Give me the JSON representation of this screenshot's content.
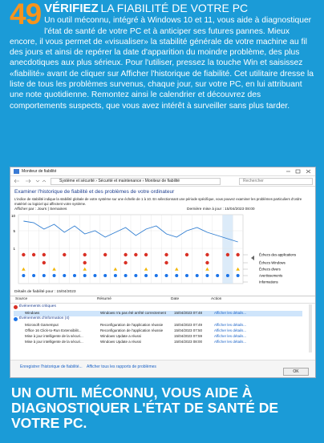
{
  "article": {
    "number": "49",
    "headline_bold": "VÉRIFIEZ",
    "headline_rest": "LA FIABILITÉ DE VOTRE PC",
    "body": "Un outil méconnu, intégré à Windows 10 et 11, vous aide à diagnostiquer l'état de santé de votre PC et à anticiper ses futures pannes. Mieux encore, il vous permet de «visualiser» la stabilité générale de votre machine au fil des jours et ainsi de repérer la date d'apparition du moindre problème, des plus anecdotiques aux plus sérieux. Pour l'utiliser, pressez la touche Win et saisissez «fiabilité» avant de cliquer sur Afficher l'historique de fiabilité. Cet utilitaire dresse la liste de tous les problèmes survenus, chaque jour, sur votre PC, en lui attribuant une note quotidienne. Remontez ainsi le calendrier et découvrez des comportements suspects, que vous avez intérêt à surveiller sans plus tarder.",
    "footer": "UN OUTIL MÉCONNU, VOUS AIDE À DIAGNOSTIQUER L'ÉTAT DE SANTÉ DE VOTRE PC."
  },
  "window": {
    "title": "Moniteur de fiabilité",
    "breadcrumb": "Système et sécurité › Sécurité et maintenance › Moniteur de fiabilité",
    "search": "Rechercher",
    "heading": "Examiner l'historique de fiabilité et des problèmes de votre ordinateur",
    "description": "L'indice de stabilité indique la stabilité globale de votre système sur une échelle de 1 à 10. En sélectionnant une période spécifique, vous pouvez examiner les problèmes particuliers d'ordre matériel ou logiciel qui affectent votre système.",
    "view_by": "Afficher par : Jours | Semaines",
    "last_update": "Dernière mise à jour : 15/04/2023 08:00",
    "scale": [
      "10",
      "5",
      "1"
    ],
    "legend": [
      "Échecs des applications",
      "Échecs Windows",
      "Échecs divers",
      "Avertissements",
      "Informations"
    ],
    "details_title": "Détails de fiabilité pour : 15/04/2023",
    "columns": [
      "Source",
      "Résumé",
      "Date",
      "Action"
    ],
    "groups": [
      {
        "title": "Événements critiques",
        "rows": [
          [
            "Windows",
            "Windows n'a pas été arrêté correctement",
            "15/04/2023 07:48",
            "Afficher les détails..."
          ]
        ]
      },
      {
        "title": "Événements d'information (4)",
        "rows": [
          [
            "Microsoft GameInput",
            "Reconfiguration de l'application réussie",
            "15/04/2023 07:49",
            "Afficher les détails..."
          ],
          [
            "Office 16 Click-to-Run Extensibilit...",
            "Reconfiguration de l'application réussie",
            "15/04/2023 07:50",
            "Afficher les détails..."
          ],
          [
            "Mise à jour intelligente de la sécuri...",
            "Windows Update a réussi",
            "15/04/2023 07:59",
            "Afficher les détails..."
          ],
          [
            "Mise à jour intelligente de la sécuri...",
            "Windows Update a réussi",
            "15/04/2023 08:00",
            "Afficher les détails..."
          ]
        ]
      }
    ],
    "buttons": [
      "Enregistrer l'historique de fiabilité...",
      "Afficher tous les rapports de problèmes"
    ],
    "ok": "OK"
  }
}
